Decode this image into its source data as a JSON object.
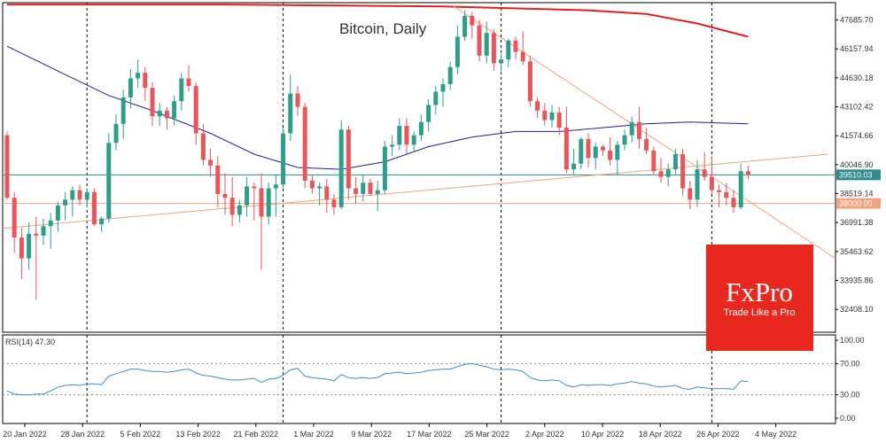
{
  "chart_data": {
    "type": "candlestick",
    "title": "Bitcoin, Daily",
    "y_ticks": [
      "47685.70",
      "46157.94",
      "44630.18",
      "43102.42",
      "41574.66",
      "40046.90",
      "38519.14",
      "36991.38",
      "35463.62",
      "33935.86",
      "32408.10"
    ],
    "x_ticks": [
      "20 Jan 2022",
      "28 Jan 2022",
      "5 Feb 2022",
      "13 Feb 2022",
      "21 Feb 2022",
      "1 Mar 2022",
      "9 Mar 2022",
      "17 Mar 2022",
      "25 Mar 2022",
      "2 Apr 2022",
      "10 Apr 2022",
      "18 Apr 2022",
      "26 Apr 2022",
      "4 May 2022"
    ],
    "ylim": [
      31200,
      48600
    ],
    "price_labels": {
      "current": {
        "value": 39510.03,
        "text": "39510.03",
        "color": "#2e8b8b"
      },
      "level": {
        "value": 38000.0,
        "text": "38000.00",
        "color": "#f2a27e"
      }
    },
    "candles": [
      [
        41600,
        41800,
        38200,
        38300
      ],
      [
        38300,
        38600,
        35400,
        36200
      ],
      [
        36200,
        36700,
        34000,
        35100
      ],
      [
        35100,
        37000,
        34500,
        36400
      ],
      [
        36400,
        37300,
        32900,
        36300
      ],
      [
        36300,
        37200,
        35800,
        36800
      ],
      [
        36800,
        37500,
        35600,
        37100
      ],
      [
        37100,
        38100,
        36500,
        37900
      ],
      [
        37900,
        38600,
        37100,
        38200
      ],
      [
        38200,
        38900,
        37300,
        38700
      ],
      [
        38700,
        39000,
        37900,
        38200
      ],
      [
        38200,
        38800,
        37800,
        38600
      ],
      [
        38600,
        38800,
        36800,
        36900
      ],
      [
        36900,
        37300,
        36500,
        37200
      ],
      [
        37200,
        41700,
        37000,
        41200
      ],
      [
        41200,
        42700,
        40800,
        42200
      ],
      [
        42200,
        44000,
        41400,
        43600
      ],
      [
        43600,
        45100,
        43000,
        44600
      ],
      [
        44600,
        45600,
        44100,
        44900
      ],
      [
        44900,
        45200,
        43400,
        44100
      ],
      [
        44100,
        44400,
        42100,
        42600
      ],
      [
        42600,
        43300,
        42100,
        42900
      ],
      [
        42900,
        43100,
        41900,
        42500
      ],
      [
        42500,
        43700,
        42100,
        43400
      ],
      [
        43400,
        44900,
        42900,
        44600
      ],
      [
        44600,
        45300,
        43900,
        44200
      ],
      [
        44200,
        44400,
        41100,
        41700
      ],
      [
        41700,
        42200,
        40000,
        40300
      ],
      [
        40300,
        40900,
        39400,
        40000
      ],
      [
        40000,
        40500,
        37800,
        38500
      ],
      [
        38500,
        39600,
        37400,
        38300
      ],
      [
        38300,
        39400,
        36800,
        37400
      ],
      [
        37400,
        38200,
        37000,
        37900
      ],
      [
        37900,
        39400,
        37300,
        38900
      ],
      [
        38900,
        39100,
        37100,
        38800
      ],
      [
        38800,
        39600,
        34500,
        37300
      ],
      [
        37300,
        39100,
        36900,
        38800
      ],
      [
        38800,
        39500,
        37300,
        39000
      ],
      [
        39000,
        42000,
        38800,
        41700
      ],
      [
        41700,
        44800,
        41300,
        43800
      ],
      [
        43800,
        44200,
        42600,
        43100
      ],
      [
        43100,
        43300,
        38800,
        39200
      ],
      [
        39200,
        39500,
        38500,
        38800
      ],
      [
        38800,
        39100,
        37900,
        38900
      ],
      [
        38900,
        39300,
        37500,
        38200
      ],
      [
        38200,
        38500,
        37400,
        37800
      ],
      [
        37800,
        42400,
        37700,
        41900
      ],
      [
        41900,
        42100,
        38200,
        38800
      ],
      [
        38800,
        39400,
        38000,
        38500
      ],
      [
        38500,
        39500,
        38100,
        39100
      ],
      [
        39100,
        39300,
        38400,
        38500
      ],
      [
        38500,
        39200,
        37600,
        38700
      ],
      [
        38700,
        41300,
        38500,
        41000
      ],
      [
        41000,
        41600,
        40500,
        41100
      ],
      [
        41100,
        42500,
        40800,
        42100
      ],
      [
        42100,
        42500,
        40600,
        41100
      ],
      [
        41100,
        41800,
        40700,
        41600
      ],
      [
        41600,
        42700,
        41300,
        42300
      ],
      [
        42300,
        43500,
        41800,
        43200
      ],
      [
        43200,
        44200,
        42700,
        43900
      ],
      [
        43900,
        44600,
        43100,
        44300
      ],
      [
        44300,
        45500,
        44000,
        45200
      ],
      [
        45200,
        47400,
        44800,
        46800
      ],
      [
        46800,
        48200,
        46600,
        47900
      ],
      [
        47900,
        48100,
        46700,
        47400
      ],
      [
        47400,
        47700,
        45500,
        45800
      ],
      [
        45800,
        47600,
        45400,
        47000
      ],
      [
        47000,
        47200,
        45000,
        45400
      ],
      [
        45400,
        46000,
        44900,
        45600
      ],
      [
        45600,
        46700,
        45200,
        46600
      ],
      [
        46600,
        46800,
        45600,
        46000
      ],
      [
        46000,
        47100,
        45300,
        45500
      ],
      [
        45500,
        45800,
        43100,
        43400
      ],
      [
        43400,
        43600,
        42500,
        42900
      ],
      [
        42900,
        43300,
        42100,
        42400
      ],
      [
        42400,
        43200,
        42000,
        42800
      ],
      [
        42800,
        43100,
        41600,
        42000
      ],
      [
        42000,
        43100,
        39600,
        39800
      ],
      [
        39800,
        40900,
        39500,
        40100
      ],
      [
        40100,
        41500,
        39800,
        41400
      ],
      [
        41400,
        41700,
        39900,
        40400
      ],
      [
        40400,
        41200,
        39800,
        41000
      ],
      [
        41000,
        41100,
        40500,
        40800
      ],
      [
        40800,
        41500,
        40000,
        40300
      ],
      [
        40300,
        41300,
        39500,
        41100
      ],
      [
        41100,
        41900,
        40800,
        41600
      ],
      [
        41600,
        42600,
        41200,
        42300
      ],
      [
        42300,
        43100,
        40900,
        41400
      ],
      [
        41400,
        42000,
        40600,
        40800
      ],
      [
        40800,
        41000,
        39500,
        39700
      ],
      [
        39700,
        40400,
        39100,
        39400
      ],
      [
        39400,
        40100,
        38900,
        39800
      ],
      [
        39800,
        40900,
        39500,
        40600
      ],
      [
        40600,
        40900,
        38400,
        38800
      ],
      [
        38800,
        39200,
        37700,
        38200
      ],
      [
        38200,
        40300,
        37800,
        39800
      ],
      [
        39800,
        40700,
        39200,
        39400
      ],
      [
        39400,
        40500,
        38500,
        38700
      ],
      [
        38700,
        39000,
        37800,
        38600
      ],
      [
        38600,
        39100,
        37900,
        38300
      ],
      [
        38300,
        38700,
        37500,
        37800
      ],
      [
        37800,
        40100,
        37700,
        39700
      ],
      [
        39700,
        40000,
        39300,
        39510
      ]
    ],
    "ma50": [
      [
        0,
        46300
      ],
      [
        8,
        44800
      ],
      [
        14,
        43700
      ],
      [
        20,
        42900
      ],
      [
        28,
        41700
      ],
      [
        34,
        40600
      ],
      [
        40,
        39900
      ],
      [
        46,
        39800
      ],
      [
        52,
        40200
      ],
      [
        58,
        41000
      ],
      [
        64,
        41500
      ],
      [
        70,
        41800
      ],
      [
        76,
        41800
      ],
      [
        82,
        42000
      ],
      [
        88,
        42200
      ],
      [
        94,
        42300
      ],
      [
        102,
        42200
      ]
    ],
    "ma200": [
      [
        0,
        48500
      ],
      [
        30,
        48500
      ],
      [
        60,
        48400
      ],
      [
        80,
        48200
      ],
      [
        88,
        48000
      ],
      [
        95,
        47500
      ],
      [
        102,
        46800
      ]
    ],
    "trendlines": [
      {
        "name": "resistance",
        "color": "#f2a27e",
        "from": [
          61.5,
          48400
        ],
        "to": [
          114,
          35100
        ]
      },
      {
        "name": "support",
        "color": "#f2a27e",
        "from": [
          -3,
          36600
        ],
        "to": [
          113,
          40600
        ]
      }
    ],
    "horizontal_lines": [
      {
        "value": 39510,
        "color": "#2e8b8b"
      },
      {
        "value": 38000,
        "color": "#f2a27e"
      }
    ],
    "vertical_lines": [
      11,
      38,
      68,
      97
    ],
    "series_colors": {
      "up": "#2e9e8b",
      "down": "#e8555a",
      "ma50": "#1e1ea0",
      "ma200": "#e02020",
      "rsi": "#3a8fd0"
    },
    "rsi": {
      "label": "RSI(14) 47.30",
      "ticks": [
        "100.00",
        "70.00",
        "30.00",
        "0.00"
      ],
      "levels": [
        70,
        30
      ],
      "values": [
        35,
        31,
        30,
        30,
        31,
        31,
        35,
        40,
        42,
        43,
        42,
        44,
        44,
        43,
        54,
        57,
        60,
        63,
        63,
        61,
        60,
        60,
        59,
        60,
        62,
        63,
        58,
        55,
        54,
        52,
        50,
        49,
        49,
        50,
        51,
        46,
        50,
        51,
        55,
        62,
        64,
        54,
        52,
        51,
        50,
        48,
        56,
        52,
        51,
        52,
        51,
        52,
        57,
        58,
        59,
        57,
        58,
        59,
        61,
        62,
        63,
        63,
        66,
        69,
        70,
        68,
        66,
        63,
        62,
        63,
        62,
        60,
        52,
        49,
        48,
        49,
        48,
        42,
        40,
        43,
        42,
        43,
        43,
        42,
        44,
        45,
        47,
        45,
        44,
        41,
        40,
        41,
        42,
        38,
        37,
        40,
        39,
        38,
        38,
        38,
        37,
        48,
        47
      ]
    }
  },
  "watermark": {
    "brand": "FxPro",
    "tagline": "Trade Like a Pro"
  }
}
